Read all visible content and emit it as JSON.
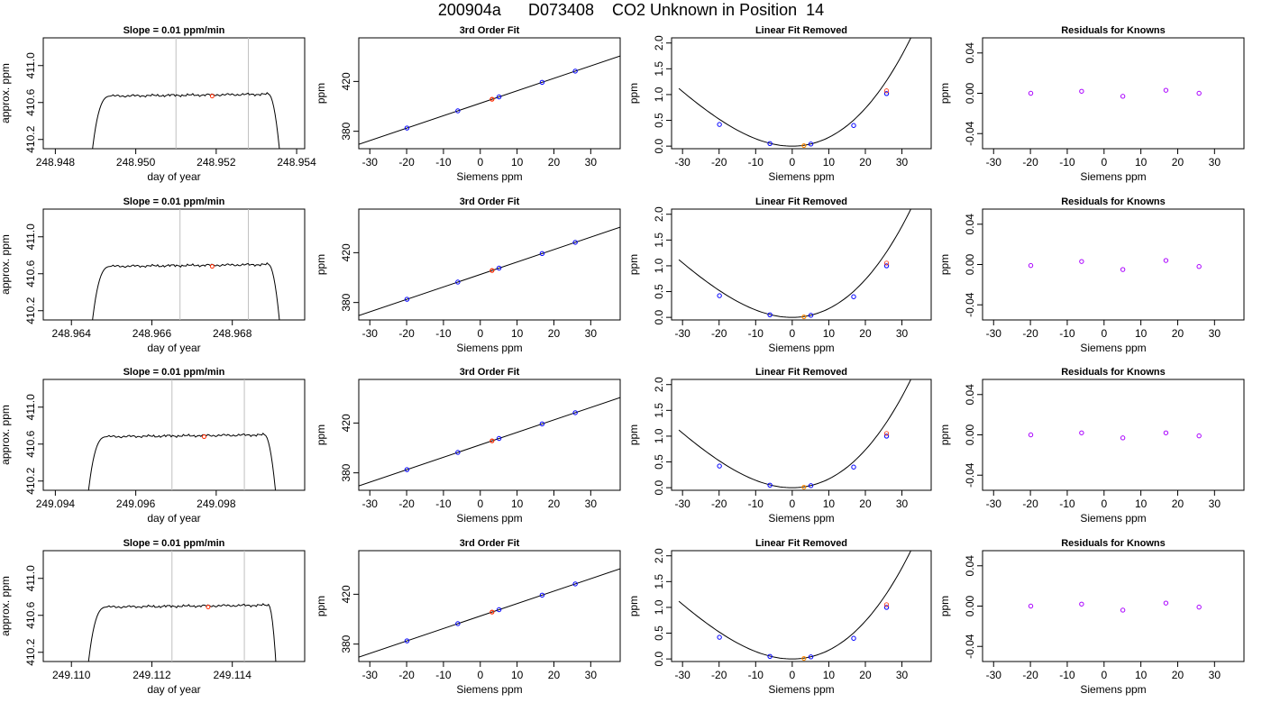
{
  "main_title": "200904a      D073408    CO2 Unknown in Position  14",
  "colors": {
    "trace": "#000000",
    "markers": "#c0c0c0",
    "unknown": "#ff2a00",
    "known": "#0000ff",
    "known_residual": "#aa00ff",
    "fit_line": "#000000",
    "highlight": "#ff8800"
  },
  "chart_data": [
    {
      "row": 1,
      "col": 1,
      "type": "line",
      "title": "Slope =  0.01  ppm/min",
      "xlabel": "day of year",
      "ylabel": "approx. ppm",
      "xlim": [
        248.9477,
        248.9542
      ],
      "ylim": [
        410.1,
        411.3
      ],
      "xticks": [
        248.948,
        248.95,
        248.952,
        248.954
      ],
      "xtick_labels": [
        "248.948",
        "248.950",
        "248.952",
        "248.954"
      ],
      "yticks": [
        410.2,
        410.6,
        411.0
      ],
      "ytick_labels": [
        "410.2",
        "410.6",
        "411.0"
      ],
      "trace": {
        "start": 248.9489,
        "rise_end": 248.9494,
        "plateau": 410.67,
        "fall_start": 248.9533,
        "end": 248.9536
      },
      "markers": [
        248.951,
        248.9528
      ],
      "unknown_point": {
        "x": 248.9519,
        "y": 410.67
      }
    },
    {
      "row": 1,
      "col": 2,
      "type": "scatter",
      "title": "3rd Order Fit",
      "xlabel": "Siemens ppm",
      "ylabel": "ppm",
      "xlim": [
        -33,
        38
      ],
      "ylim": [
        366,
        455
      ],
      "xticks": [
        -30,
        -20,
        -10,
        0,
        10,
        20,
        30
      ],
      "xtick_labels": [
        "-30",
        "-20",
        "-10",
        "0",
        "10",
        "20",
        "30"
      ],
      "yticks": [
        380,
        420
      ],
      "ytick_labels": [
        "380",
        "420"
      ],
      "fit": {
        "slope": 1.0,
        "intercept": 402.5
      },
      "known_points": [
        {
          "x": -19.9,
          "y": 382.6
        },
        {
          "x": -6.1,
          "y": 396.4
        },
        {
          "x": 5.1,
          "y": 407.6
        },
        {
          "x": 16.8,
          "y": 419.3
        },
        {
          "x": 25.8,
          "y": 428.3
        }
      ],
      "unknown_point": {
        "x": 3.2,
        "y": 405.7
      }
    },
    {
      "row": 1,
      "col": 3,
      "type": "scatter",
      "title": "Linear Fit Removed",
      "xlabel": "Siemens ppm",
      "ylabel": "ppm",
      "xlim": [
        -33,
        38
      ],
      "ylim": [
        -0.05,
        2.1
      ],
      "xticks": [
        -30,
        -20,
        -10,
        0,
        10,
        20,
        30
      ],
      "xtick_labels": [
        "-30",
        "-20",
        "-10",
        "0",
        "10",
        "20",
        "30"
      ],
      "yticks": [
        0,
        0.5,
        1.0,
        1.5,
        2.0
      ],
      "ytick_labels": [
        "0.0",
        "0.5",
        "1.0",
        "1.5",
        "2.0"
      ],
      "curve": {
        "a": 0.00157,
        "b": 0.0
      },
      "known_points": [
        {
          "x": -19.9,
          "y": 0.42
        },
        {
          "x": -6.1,
          "y": 0.05
        },
        {
          "x": 5.1,
          "y": 0.04
        },
        {
          "x": 16.8,
          "y": 0.4
        },
        {
          "x": 25.8,
          "y": 1.02
        }
      ],
      "unknown_point": {
        "x": 3.2,
        "y": 0.01
      }
    },
    {
      "row": 1,
      "col": 4,
      "type": "scatter",
      "title": "Residuals for Knowns",
      "xlabel": "Siemens ppm",
      "ylabel": "ppm",
      "xlim": [
        -33,
        38
      ],
      "ylim": [
        -0.055,
        0.055
      ],
      "xticks": [
        -30,
        -20,
        -10,
        0,
        10,
        20,
        30
      ],
      "xtick_labels": [
        "-30",
        "-20",
        "-10",
        "0",
        "10",
        "20",
        "30"
      ],
      "yticks": [
        -0.04,
        0.0,
        0.04
      ],
      "ytick_labels": [
        "-0.04",
        "0.00",
        "0.04"
      ],
      "known_points": [
        {
          "x": -19.9,
          "y": 0.0
        },
        {
          "x": -6.1,
          "y": 0.002
        },
        {
          "x": 5.1,
          "y": -0.003
        },
        {
          "x": 16.8,
          "y": 0.003
        },
        {
          "x": 25.8,
          "y": 0.0
        }
      ]
    },
    {
      "row": 2,
      "col": 1,
      "type": "line",
      "title": "Slope =  0.01  ppm/min",
      "xlabel": "day of year",
      "ylabel": "approx. ppm",
      "xlim": [
        248.9633,
        248.9698
      ],
      "ylim": [
        410.1,
        411.3
      ],
      "xticks": [
        248.964,
        248.966,
        248.968
      ],
      "xtick_labels": [
        "248.964",
        "248.966",
        "248.968"
      ],
      "yticks": [
        410.2,
        410.6,
        411.0
      ],
      "ytick_labels": [
        "410.2",
        "410.6",
        "411.0"
      ],
      "trace": {
        "start": 248.9645,
        "rise_end": 248.965,
        "plateau": 410.68,
        "fall_start": 248.9689,
        "end": 248.9692
      },
      "markers": [
        248.9667,
        248.9684
      ],
      "unknown_point": {
        "x": 248.9675,
        "y": 410.68
      }
    },
    {
      "row": 2,
      "col": 2,
      "type": "scatter",
      "title": "3rd Order Fit",
      "xlabel": "Siemens ppm",
      "ylabel": "ppm",
      "xlim": [
        -33,
        38
      ],
      "ylim": [
        366,
        455
      ],
      "xticks": [
        -30,
        -20,
        -10,
        0,
        10,
        20,
        30
      ],
      "xtick_labels": [
        "-30",
        "-20",
        "-10",
        "0",
        "10",
        "20",
        "30"
      ],
      "yticks": [
        380,
        420
      ],
      "ytick_labels": [
        "380",
        "420"
      ],
      "fit": {
        "slope": 1.0,
        "intercept": 402.5
      },
      "known_points": [
        {
          "x": -19.9,
          "y": 382.6
        },
        {
          "x": -6.1,
          "y": 396.4
        },
        {
          "x": 5.1,
          "y": 407.6
        },
        {
          "x": 16.8,
          "y": 419.3
        },
        {
          "x": 25.8,
          "y": 428.3
        }
      ],
      "unknown_point": {
        "x": 3.2,
        "y": 405.7
      }
    },
    {
      "row": 2,
      "col": 3,
      "type": "scatter",
      "title": "Linear Fit Removed",
      "xlabel": "Siemens ppm",
      "ylabel": "ppm",
      "xlim": [
        -33,
        38
      ],
      "ylim": [
        -0.05,
        2.1
      ],
      "xticks": [
        -30,
        -20,
        -10,
        0,
        10,
        20,
        30
      ],
      "xtick_labels": [
        "-30",
        "-20",
        "-10",
        "0",
        "10",
        "20",
        "30"
      ],
      "yticks": [
        0,
        0.5,
        1.0,
        1.5,
        2.0
      ],
      "ytick_labels": [
        "0.0",
        "0.5",
        "1.0",
        "1.5",
        "2.0"
      ],
      "curve": {
        "a": 0.00157,
        "b": 0.0
      },
      "known_points": [
        {
          "x": -19.9,
          "y": 0.42
        },
        {
          "x": -6.1,
          "y": 0.05
        },
        {
          "x": 5.1,
          "y": 0.04
        },
        {
          "x": 16.8,
          "y": 0.4
        },
        {
          "x": 25.8,
          "y": 1.0
        }
      ],
      "unknown_point": {
        "x": 3.2,
        "y": 0.01
      }
    },
    {
      "row": 2,
      "col": 4,
      "type": "scatter",
      "title": "Residuals for Knowns",
      "xlabel": "Siemens ppm",
      "ylabel": "ppm",
      "xlim": [
        -33,
        38
      ],
      "ylim": [
        -0.055,
        0.055
      ],
      "xticks": [
        -30,
        -20,
        -10,
        0,
        10,
        20,
        30
      ],
      "xtick_labels": [
        "-30",
        "-20",
        "-10",
        "0",
        "10",
        "20",
        "30"
      ],
      "yticks": [
        -0.04,
        0.0,
        0.04
      ],
      "ytick_labels": [
        "-0.04",
        "0.00",
        "0.04"
      ],
      "known_points": [
        {
          "x": -19.9,
          "y": -0.001
        },
        {
          "x": -6.1,
          "y": 0.003
        },
        {
          "x": 5.1,
          "y": -0.005
        },
        {
          "x": 16.8,
          "y": 0.004
        },
        {
          "x": 25.8,
          "y": -0.002
        }
      ]
    },
    {
      "row": 3,
      "col": 1,
      "type": "line",
      "title": "Slope =  0.01  ppm/min",
      "xlabel": "day of year",
      "ylabel": "approx. ppm",
      "xlim": [
        249.0937,
        249.1002
      ],
      "ylim": [
        410.1,
        411.3
      ],
      "xticks": [
        249.094,
        249.096,
        249.098
      ],
      "xtick_labels": [
        "249.094",
        "249.096",
        "249.098"
      ],
      "yticks": [
        410.2,
        410.6,
        411.0
      ],
      "ytick_labels": [
        "410.2",
        "410.6",
        "411.0"
      ],
      "trace": {
        "start": 249.0948,
        "rise_end": 249.0953,
        "plateau": 410.68,
        "fall_start": 249.0992,
        "end": 249.0995
      },
      "markers": [
        249.0969,
        249.0987
      ],
      "unknown_point": {
        "x": 249.0977,
        "y": 410.68
      }
    },
    {
      "row": 3,
      "col": 2,
      "type": "scatter",
      "title": "3rd Order Fit",
      "xlabel": "Siemens ppm",
      "ylabel": "ppm",
      "xlim": [
        -33,
        38
      ],
      "ylim": [
        366,
        455
      ],
      "xticks": [
        -30,
        -20,
        -10,
        0,
        10,
        20,
        30
      ],
      "xtick_labels": [
        "-30",
        "-20",
        "-10",
        "0",
        "10",
        "20",
        "30"
      ],
      "yticks": [
        380,
        420
      ],
      "ytick_labels": [
        "380",
        "420"
      ],
      "fit": {
        "slope": 1.0,
        "intercept": 402.5
      },
      "known_points": [
        {
          "x": -19.9,
          "y": 382.6
        },
        {
          "x": -6.1,
          "y": 396.4
        },
        {
          "x": 5.1,
          "y": 407.6
        },
        {
          "x": 16.8,
          "y": 419.3
        },
        {
          "x": 25.8,
          "y": 428.3
        }
      ],
      "unknown_point": {
        "x": 3.2,
        "y": 405.7
      }
    },
    {
      "row": 3,
      "col": 3,
      "type": "scatter",
      "title": "Linear Fit Removed",
      "xlabel": "Siemens ppm",
      "ylabel": "ppm",
      "xlim": [
        -33,
        38
      ],
      "ylim": [
        -0.05,
        2.1
      ],
      "xticks": [
        -30,
        -20,
        -10,
        0,
        10,
        20,
        30
      ],
      "xtick_labels": [
        "-30",
        "-20",
        "-10",
        "0",
        "10",
        "20",
        "30"
      ],
      "yticks": [
        0,
        0.5,
        1.0,
        1.5,
        2.0
      ],
      "ytick_labels": [
        "0.0",
        "0.5",
        "1.0",
        "1.5",
        "2.0"
      ],
      "curve": {
        "a": 0.00157,
        "b": 0.0
      },
      "known_points": [
        {
          "x": -19.9,
          "y": 0.42
        },
        {
          "x": -6.1,
          "y": 0.05
        },
        {
          "x": 5.1,
          "y": 0.04
        },
        {
          "x": 16.8,
          "y": 0.4
        },
        {
          "x": 25.8,
          "y": 1.0
        }
      ],
      "unknown_point": {
        "x": 3.2,
        "y": 0.01
      }
    },
    {
      "row": 3,
      "col": 4,
      "type": "scatter",
      "title": "Residuals for Knowns",
      "xlabel": "Siemens ppm",
      "ylabel": "ppm",
      "xlim": [
        -33,
        38
      ],
      "ylim": [
        -0.055,
        0.055
      ],
      "xticks": [
        -30,
        -20,
        -10,
        0,
        10,
        20,
        30
      ],
      "xtick_labels": [
        "-30",
        "-20",
        "-10",
        "0",
        "10",
        "20",
        "30"
      ],
      "yticks": [
        -0.04,
        0.0,
        0.04
      ],
      "ytick_labels": [
        "-0.04",
        "0.00",
        "0.04"
      ],
      "known_points": [
        {
          "x": -19.9,
          "y": 0.0
        },
        {
          "x": -6.1,
          "y": 0.002
        },
        {
          "x": 5.1,
          "y": -0.003
        },
        {
          "x": 16.8,
          "y": 0.002
        },
        {
          "x": 25.8,
          "y": -0.001
        }
      ]
    },
    {
      "row": 4,
      "col": 1,
      "type": "line",
      "title": "Slope =  0.01  ppm/min",
      "xlabel": "day of year",
      "ylabel": "approx. ppm",
      "xlim": [
        249.1093,
        249.1158
      ],
      "ylim": [
        410.1,
        411.3
      ],
      "xticks": [
        249.11,
        249.112,
        249.114
      ],
      "xtick_labels": [
        "249.110",
        "249.112",
        "249.114"
      ],
      "yticks": [
        410.2,
        410.6,
        411.0
      ],
      "ytick_labels": [
        "410.2",
        "410.6",
        "411.0"
      ],
      "trace": {
        "start": 249.1104,
        "rise_end": 249.1109,
        "plateau": 410.69,
        "fall_start": 249.1149,
        "end": 249.1151
      },
      "markers": [
        249.1125,
        249.1143
      ],
      "unknown_point": {
        "x": 249.1134,
        "y": 410.69
      }
    },
    {
      "row": 4,
      "col": 2,
      "type": "scatter",
      "title": "3rd Order Fit",
      "xlabel": "Siemens ppm",
      "ylabel": "ppm",
      "xlim": [
        -33,
        38
      ],
      "ylim": [
        366,
        455
      ],
      "xticks": [
        -30,
        -20,
        -10,
        0,
        10,
        20,
        30
      ],
      "xtick_labels": [
        "-30",
        "-20",
        "-10",
        "0",
        "10",
        "20",
        "30"
      ],
      "yticks": [
        380,
        420
      ],
      "ytick_labels": [
        "380",
        "420"
      ],
      "fit": {
        "slope": 1.0,
        "intercept": 402.5
      },
      "known_points": [
        {
          "x": -19.9,
          "y": 382.6
        },
        {
          "x": -6.1,
          "y": 396.4
        },
        {
          "x": 5.1,
          "y": 407.6
        },
        {
          "x": 16.8,
          "y": 419.3
        },
        {
          "x": 25.8,
          "y": 428.3
        }
      ],
      "unknown_point": {
        "x": 3.2,
        "y": 405.7
      }
    },
    {
      "row": 4,
      "col": 3,
      "type": "scatter",
      "title": "Linear Fit Removed",
      "xlabel": "Siemens ppm",
      "ylabel": "ppm",
      "xlim": [
        -33,
        38
      ],
      "ylim": [
        -0.05,
        2.1
      ],
      "xticks": [
        -30,
        -20,
        -10,
        0,
        10,
        20,
        30
      ],
      "xtick_labels": [
        "-30",
        "-20",
        "-10",
        "0",
        "10",
        "20",
        "30"
      ],
      "yticks": [
        0,
        0.5,
        1.0,
        1.5,
        2.0
      ],
      "ytick_labels": [
        "0.0",
        "0.5",
        "1.0",
        "1.5",
        "2.0"
      ],
      "curve": {
        "a": 0.00157,
        "b": 0.0
      },
      "known_points": [
        {
          "x": -19.9,
          "y": 0.42
        },
        {
          "x": -6.1,
          "y": 0.05
        },
        {
          "x": 5.1,
          "y": 0.04
        },
        {
          "x": 16.8,
          "y": 0.4
        },
        {
          "x": 25.8,
          "y": 1.0
        }
      ],
      "unknown_point": {
        "x": 3.2,
        "y": 0.01
      }
    },
    {
      "row": 4,
      "col": 4,
      "type": "scatter",
      "title": "Residuals for Knowns",
      "xlabel": "Siemens ppm",
      "ylabel": "ppm",
      "xlim": [
        -33,
        38
      ],
      "ylim": [
        -0.055,
        0.055
      ],
      "xticks": [
        -30,
        -20,
        -10,
        0,
        10,
        20,
        30
      ],
      "xtick_labels": [
        "-30",
        "-20",
        "-10",
        "0",
        "10",
        "20",
        "30"
      ],
      "yticks": [
        -0.04,
        0.0,
        0.04
      ],
      "ytick_labels": [
        "-0.04",
        "0.00",
        "0.04"
      ],
      "known_points": [
        {
          "x": -19.9,
          "y": 0.0
        },
        {
          "x": -6.1,
          "y": 0.002
        },
        {
          "x": 5.1,
          "y": -0.004
        },
        {
          "x": 16.8,
          "y": 0.003
        },
        {
          "x": 25.8,
          "y": -0.001
        }
      ]
    }
  ]
}
